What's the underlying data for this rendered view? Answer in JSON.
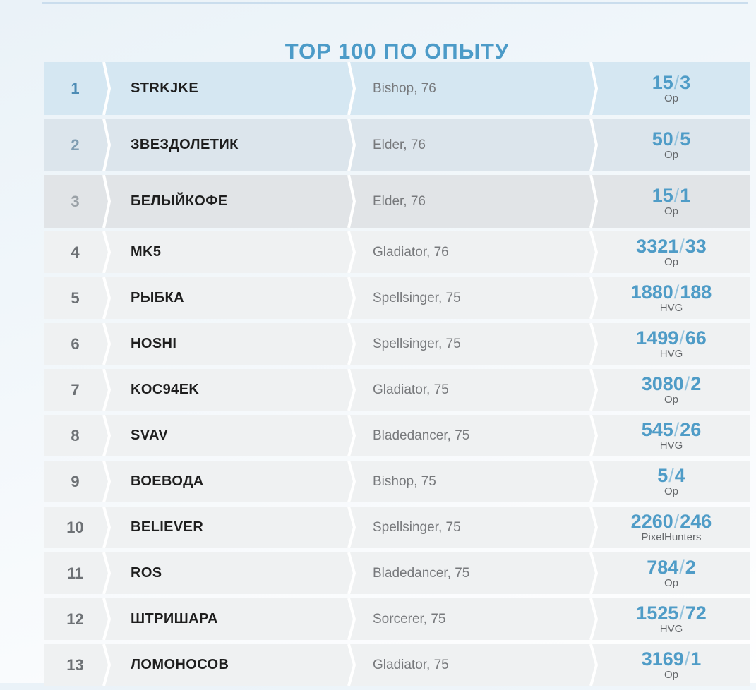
{
  "page": {
    "title": "TOP 100 ПО ОПЫТУ"
  },
  "colors": {
    "accent_blue": "#4c9bc8",
    "score_blue": "#4f9cc7",
    "slash_blue": "#92c2dd",
    "row1_bg": "#d5e7f2",
    "row2_bg": "#dce5ec",
    "row3_bg": "#e1e4e7",
    "row_bg": "#eff1f2",
    "rank1": "#4d8cb5",
    "rank2": "#809db2",
    "rank3": "#9aa1a7",
    "rank_default": "#6d7175",
    "name_color": "#1e1e1e",
    "class_color": "#77797c",
    "clan_color": "#64676a",
    "top_line": "#cadded"
  },
  "table": {
    "rows": [
      {
        "rank": "1",
        "name": "STRKJKE",
        "class": "Bishop, 76",
        "score": "15/3",
        "clan": "Op",
        "tier": "t1"
      },
      {
        "rank": "2",
        "name": "ЗВЕЗДОЛЕТИК",
        "class": "Elder, 76",
        "score": "50/5",
        "clan": "Op",
        "tier": "t2"
      },
      {
        "rank": "3",
        "name": "БЕЛЫЙКОФЕ",
        "class": "Elder, 76",
        "score": "15/1",
        "clan": "Op",
        "tier": "t3"
      },
      {
        "rank": "4",
        "name": "MK5",
        "class": "Gladiator, 76",
        "score": "3321/33",
        "clan": "Op",
        "tier": "n"
      },
      {
        "rank": "5",
        "name": "РЫБКА",
        "class": "Spellsinger, 75",
        "score": "1880/188",
        "clan": "HVG",
        "tier": "n"
      },
      {
        "rank": "6",
        "name": "HOSHI",
        "class": "Spellsinger, 75",
        "score": "1499/66",
        "clan": "HVG",
        "tier": "n"
      },
      {
        "rank": "7",
        "name": "KOC94EK",
        "class": "Gladiator, 75",
        "score": "3080/2",
        "clan": "Op",
        "tier": "n"
      },
      {
        "rank": "8",
        "name": "SVAV",
        "class": "Bladedancer, 75",
        "score": "545/26",
        "clan": "HVG",
        "tier": "n"
      },
      {
        "rank": "9",
        "name": "ВОЕВОДА",
        "class": "Bishop, 75",
        "score": "5/4",
        "clan": "Op",
        "tier": "n"
      },
      {
        "rank": "10",
        "name": "BELIEVER",
        "class": "Spellsinger, 75",
        "score": "2260/246",
        "clan": "PixelHunters",
        "tier": "n"
      },
      {
        "rank": "11",
        "name": "ROS",
        "class": "Bladedancer, 75",
        "score": "784/2",
        "clan": "Op",
        "tier": "n"
      },
      {
        "rank": "12",
        "name": "ШТРИШАРА",
        "class": "Sorcerer, 75",
        "score": "1525/72",
        "clan": "HVG",
        "tier": "n"
      },
      {
        "rank": "13",
        "name": "ЛОМОНОСОВ",
        "class": "Gladiator, 75",
        "score": "3169/1",
        "clan": "Op",
        "tier": "n"
      }
    ]
  }
}
